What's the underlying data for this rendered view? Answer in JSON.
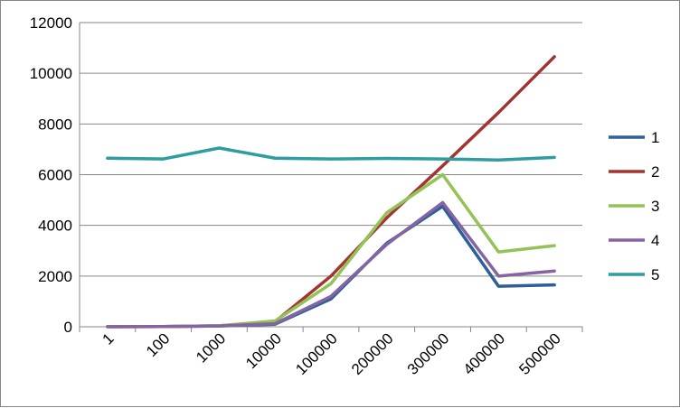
{
  "chart_data": {
    "type": "line",
    "title": "",
    "xlabel": "",
    "ylabel": "",
    "categories": [
      "1",
      "100",
      "1000",
      "10000",
      "100000",
      "200000",
      "300000",
      "400000",
      "500000"
    ],
    "ylim": [
      0,
      12000
    ],
    "yticks": [
      0,
      2000,
      4000,
      6000,
      8000,
      10000,
      12000
    ],
    "grid": "horizontal",
    "legend": "right",
    "series": [
      {
        "name": "1",
        "color": "#2E5F98",
        "values": [
          5,
          10,
          30,
          100,
          1100,
          3300,
          4750,
          1600,
          1650
        ]
      },
      {
        "name": "2",
        "color": "#A23532",
        "values": [
          5,
          10,
          40,
          200,
          2000,
          4300,
          6350,
          8450,
          10650
        ]
      },
      {
        "name": "3",
        "color": "#93C356",
        "values": [
          5,
          10,
          40,
          230,
          1700,
          4500,
          6000,
          2950,
          3200
        ]
      },
      {
        "name": "4",
        "color": "#8465A2",
        "values": [
          5,
          10,
          30,
          120,
          1200,
          3250,
          4900,
          2000,
          2200
        ]
      },
      {
        "name": "5",
        "color": "#2F9D9D",
        "values": [
          6650,
          6620,
          7050,
          6650,
          6620,
          6640,
          6620,
          6580,
          6680
        ]
      }
    ]
  }
}
